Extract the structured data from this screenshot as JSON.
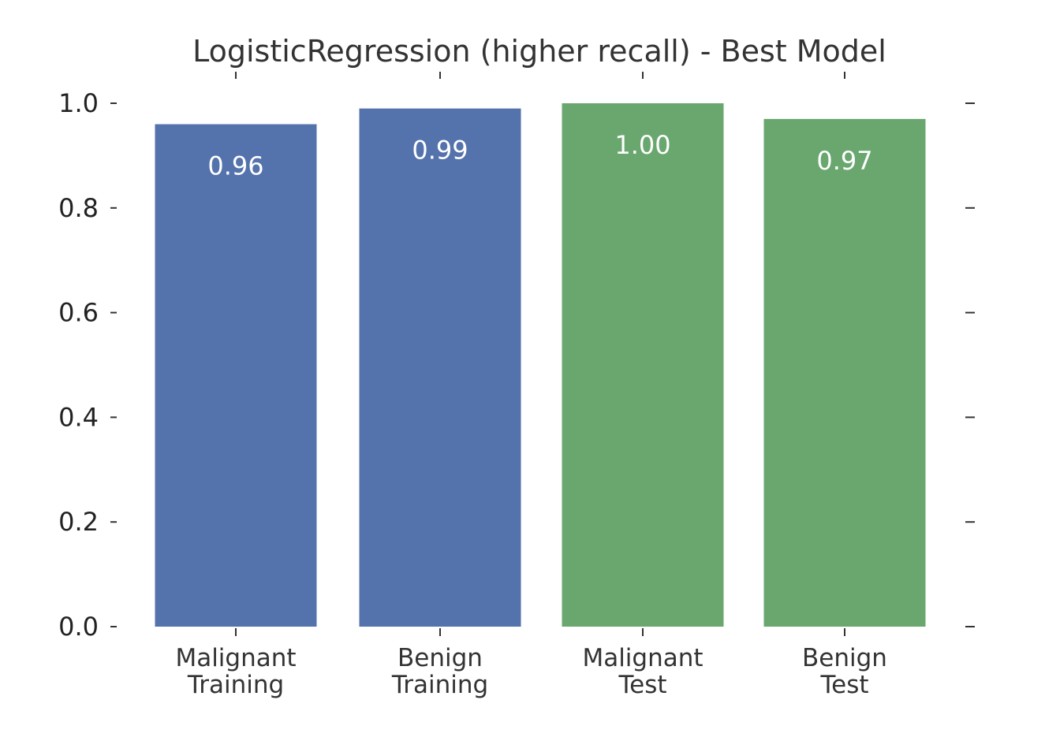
{
  "chart_data": {
    "type": "bar",
    "title": "LogisticRegression (higher recall) - Best Model",
    "xlabel": "",
    "ylabel": "",
    "categories": [
      "Malignant\nTraining",
      "Benign\nTraining",
      "Malignant\nTest",
      "Benign\nTest"
    ],
    "values": [
      0.96,
      0.99,
      1.0,
      0.97
    ],
    "value_labels": [
      "0.96",
      "0.99",
      "1.00",
      "0.97"
    ],
    "bar_colors": [
      "#5472ab",
      "#5472ab",
      "#6aa76f",
      "#6aa76f"
    ],
    "ylim": [
      0,
      1.0
    ],
    "yticks": [
      "0.0",
      "0.2",
      "0.4",
      "0.6",
      "0.8",
      "1.0"
    ],
    "ytick_values": [
      0.0,
      0.2,
      0.4,
      0.6,
      0.8,
      1.0
    ],
    "grid": false,
    "legend": "none"
  }
}
